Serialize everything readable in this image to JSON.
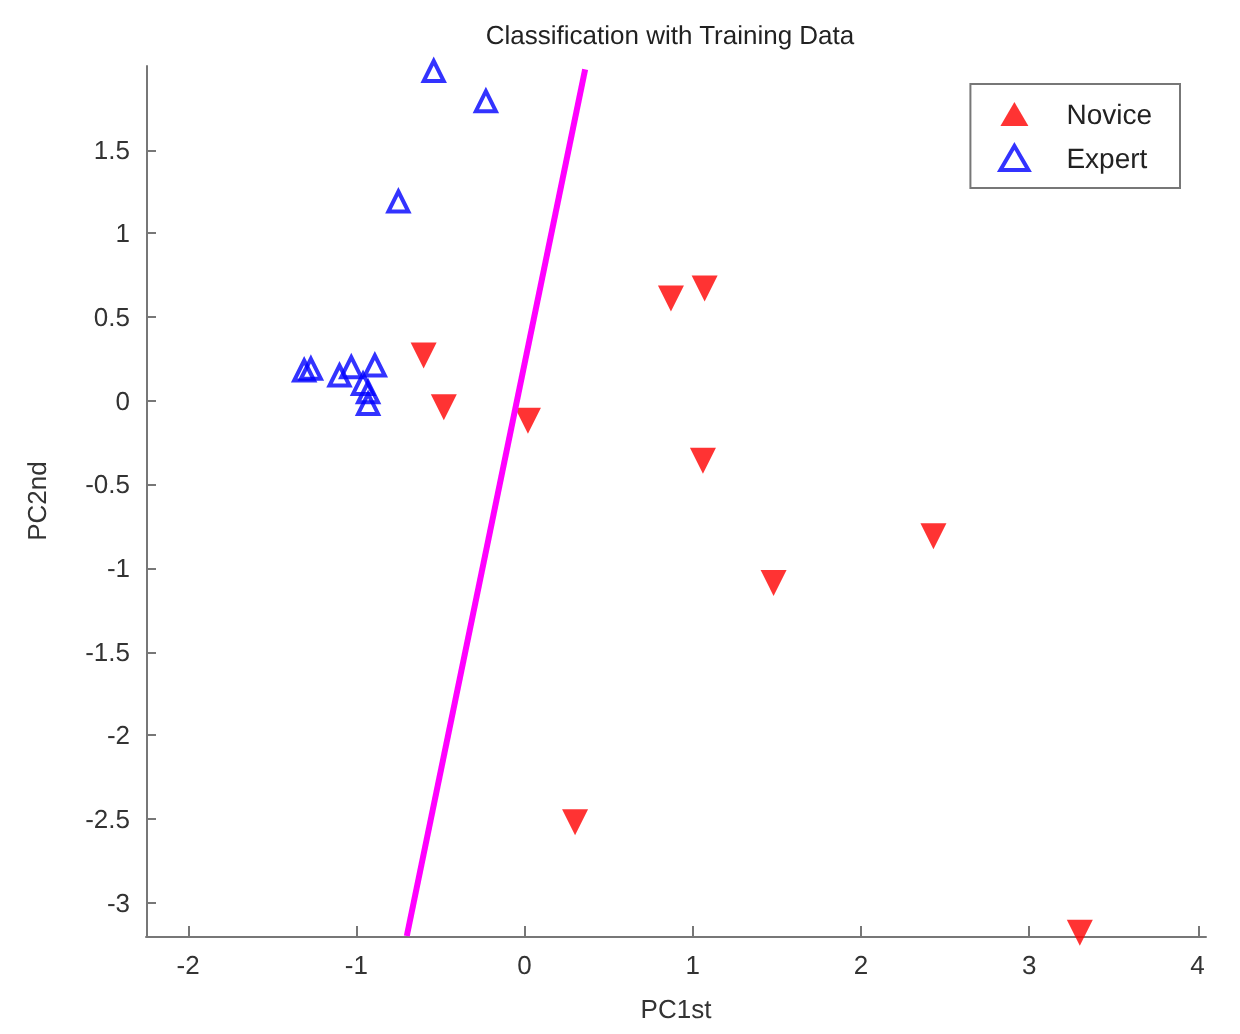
{
  "chart_data": {
    "type": "scatter",
    "title": "Classification with Training Data",
    "xlabel": "PC1st",
    "ylabel": "PC2nd",
    "xlim": [
      -2.25,
      4.05
    ],
    "ylim": [
      -3.2,
      2
    ],
    "xticks": [
      -2,
      -1,
      0,
      1,
      2,
      3,
      4
    ],
    "yticks": [
      -3,
      -2.5,
      -2,
      -1.5,
      -1,
      -0.5,
      0,
      0.5,
      1,
      1.5
    ],
    "grid": false,
    "legend": "top right",
    "series": [
      {
        "name": "Novice",
        "color": "#ff0000",
        "marker": "triangle_down",
        "x": [
          -0.6,
          -0.48,
          0.02,
          0.87,
          1.07,
          1.06,
          1.48,
          2.43,
          0.3,
          3.3
        ],
        "values": [
          0.27,
          -0.04,
          -0.12,
          0.61,
          0.67,
          -0.36,
          -1.09,
          -0.81,
          -2.52,
          -3.18
        ]
      },
      {
        "name": "Expert",
        "color": "#0000ff",
        "marker": "triangle_open",
        "x": [
          -0.54,
          -0.23,
          -0.75,
          -1.27,
          -1.31,
          -1.1,
          -1.03,
          -0.89,
          -0.96,
          -0.93,
          -0.93
        ],
        "values": [
          1.97,
          1.79,
          1.19,
          0.19,
          0.18,
          0.15,
          0.2,
          0.21,
          0.1,
          0.05,
          -0.02
        ]
      },
      {
        "type": "line",
        "color": "#ff00ff",
        "marker": "none",
        "x": [
          0.36,
          -0.7
        ],
        "values": [
          1.98,
          -3.2
        ]
      }
    ]
  }
}
